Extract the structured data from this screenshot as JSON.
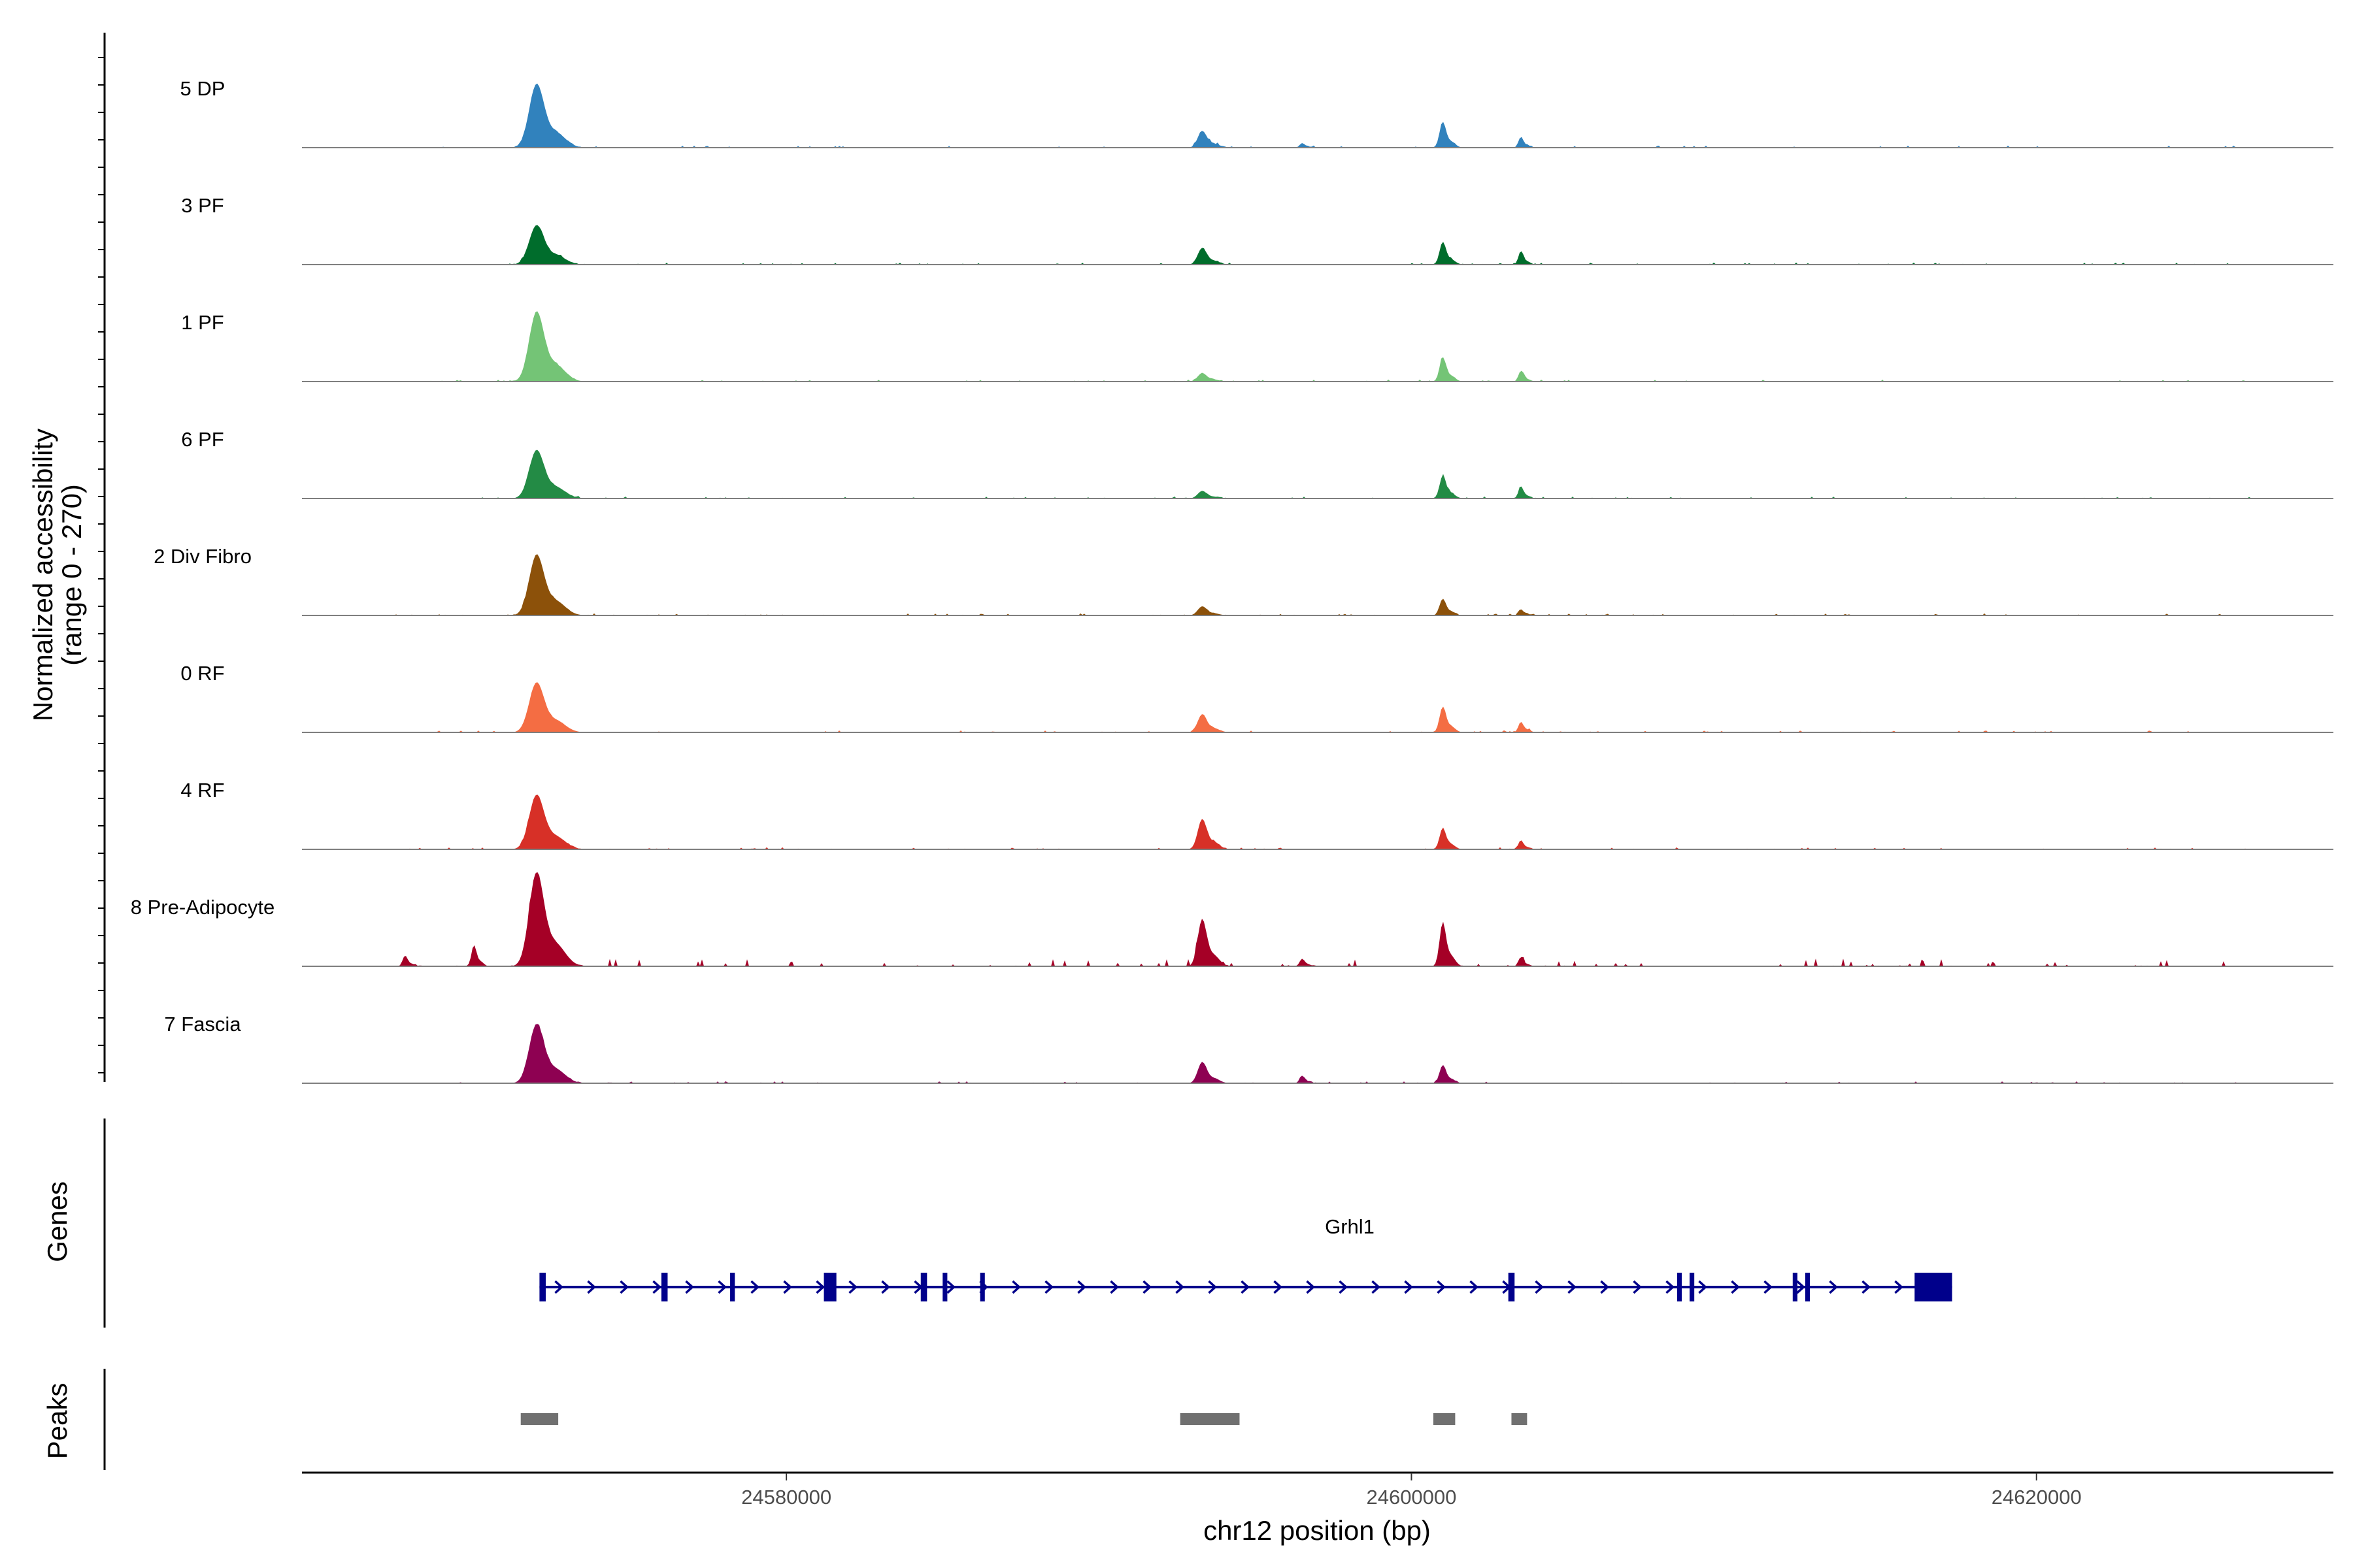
{
  "chart_data": {
    "type": "area",
    "tracks": [
      {
        "label": "5 DP",
        "color": "#3182bd"
      },
      {
        "label": "3 PF",
        "color": "#006d2c"
      },
      {
        "label": "1 PF",
        "color": "#74c476"
      },
      {
        "label": "6 PF",
        "color": "#238b45"
      },
      {
        "label": "2 Div Fibro",
        "color": "#8c510a"
      },
      {
        "label": "0 RF",
        "color": "#f46d43"
      },
      {
        "label": "4 RF",
        "color": "#d73027"
      },
      {
        "label": "8 Pre-Adipocyte",
        "color": "#a50026"
      },
      {
        "label": "7 Fascia",
        "color": "#8e0152"
      }
    ],
    "coverage_ylabel_line1": "Normalized accessibility",
    "coverage_ylabel_line2": "(range 0 - 270)",
    "coverage_ylim": [
      0,
      270
    ],
    "xlabel": "chr12 position (bp)",
    "xlim": [
      24564500,
      24629500
    ],
    "x_ticks": [
      24580000,
      24600000,
      24620000
    ],
    "x_tick_labels": [
      "24580000",
      "24600000",
      "24620000"
    ],
    "peak_positions_bp": [
      24572000,
      24593300,
      24601000,
      24603500,
      24596500,
      24570000,
      24567800
    ],
    "peak_heights": {
      "5 DP": [
        210,
        55,
        85,
        35,
        15,
        0,
        0
      ],
      "3 PF": [
        130,
        55,
        75,
        45,
        0,
        0,
        0
      ],
      "1 PF": [
        230,
        28,
        80,
        35,
        0,
        0,
        0
      ],
      "6 PF": [
        160,
        25,
        75,
        40,
        0,
        0,
        0
      ],
      "2 Div Fibro": [
        200,
        30,
        55,
        20,
        0,
        0,
        0
      ],
      "0 RF": [
        165,
        60,
        85,
        35,
        0,
        0,
        0
      ],
      "4 RF": [
        180,
        100,
        70,
        30,
        0,
        0,
        0
      ],
      "8 Pre-Adipocyte": [
        310,
        155,
        145,
        30,
        25,
        70,
        35
      ],
      "7 Fascia": [
        195,
        70,
        60,
        0,
        25,
        0,
        0
      ]
    },
    "genes": {
      "title": "Genes",
      "name": "Grhl1",
      "strand": "+",
      "start": 24572100,
      "end": 24617300,
      "color": "#00008b",
      "exons": [
        [
          24572100,
          24572300
        ],
        [
          24576000,
          24576200
        ],
        [
          24578200,
          24578350
        ],
        [
          24581200,
          24581600
        ],
        [
          24584300,
          24584500
        ],
        [
          24585000,
          24585150
        ],
        [
          24586200,
          24586350
        ],
        [
          24603100,
          24603300
        ],
        [
          24608500,
          24608650
        ],
        [
          24608900,
          24609050
        ],
        [
          24612200,
          24612350
        ],
        [
          24612600,
          24612750
        ],
        [
          24616100,
          24617300
        ]
      ]
    },
    "peaks": {
      "title": "Peaks",
      "color": "#707070",
      "regions": [
        [
          24571500,
          24572700
        ],
        [
          24592600,
          24594500
        ],
        [
          24600700,
          24601400
        ],
        [
          24603200,
          24603700
        ]
      ]
    }
  }
}
